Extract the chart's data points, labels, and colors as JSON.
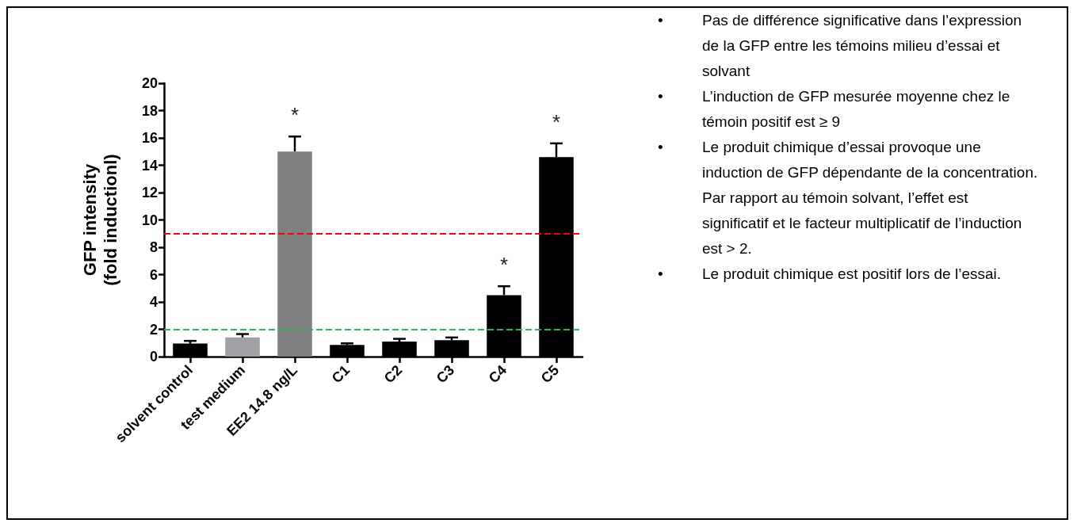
{
  "chart_data": {
    "type": "bar",
    "ylabel": "GFP intensity\n(fold inductionl)",
    "categories": [
      "solvent control",
      "test medium",
      "EE2 14.8 ng/L",
      "C1",
      "C2",
      "C3",
      "C4",
      "C5"
    ],
    "values": [
      0.95,
      1.4,
      15.0,
      0.85,
      1.1,
      1.2,
      4.5,
      14.6
    ],
    "colors": [
      "#000000",
      "#a0a0a4",
      "#808080",
      "#000000",
      "#000000",
      "#000000",
      "#000000",
      "#000000"
    ],
    "errors": [
      0.2,
      0.25,
      1.1,
      0.12,
      0.2,
      0.2,
      0.65,
      1.0
    ],
    "ylim": [
      0,
      20
    ],
    "yticks": [
      0,
      2,
      4,
      6,
      8,
      10,
      12,
      14,
      16,
      18,
      20
    ],
    "ref_lines": [
      {
        "axis": "y",
        "value": 9,
        "color": "#ff0000",
        "line_style": "dashed"
      },
      {
        "axis": "y",
        "value": 2,
        "color": "#22bb55",
        "line_style": "dashed"
      }
    ],
    "annotations": [
      {
        "text": "*",
        "x": "EE2 14.8 ng/L",
        "y": 16.1
      },
      {
        "text": "*",
        "x": "C4",
        "y": 5.15
      },
      {
        "text": "*",
        "x": "C5",
        "y": 15.6
      },
      "• Pas de différence significative dans l’expression de la GFP entre les témoins milieu d’essai et solvant",
      "• L’induction de GFP mesurée moyenne chez le témoin positif est ≥ 9",
      "• Le produit chimique d’essai provoque une induction de GFP dépendante de la concentration. Par rapport au témoin solvant, l’effet est significatif et le facteur multiplicatif de l’induction est > 2.",
      "• Le produit chimique est positif lors de l’essai."
    ]
  }
}
